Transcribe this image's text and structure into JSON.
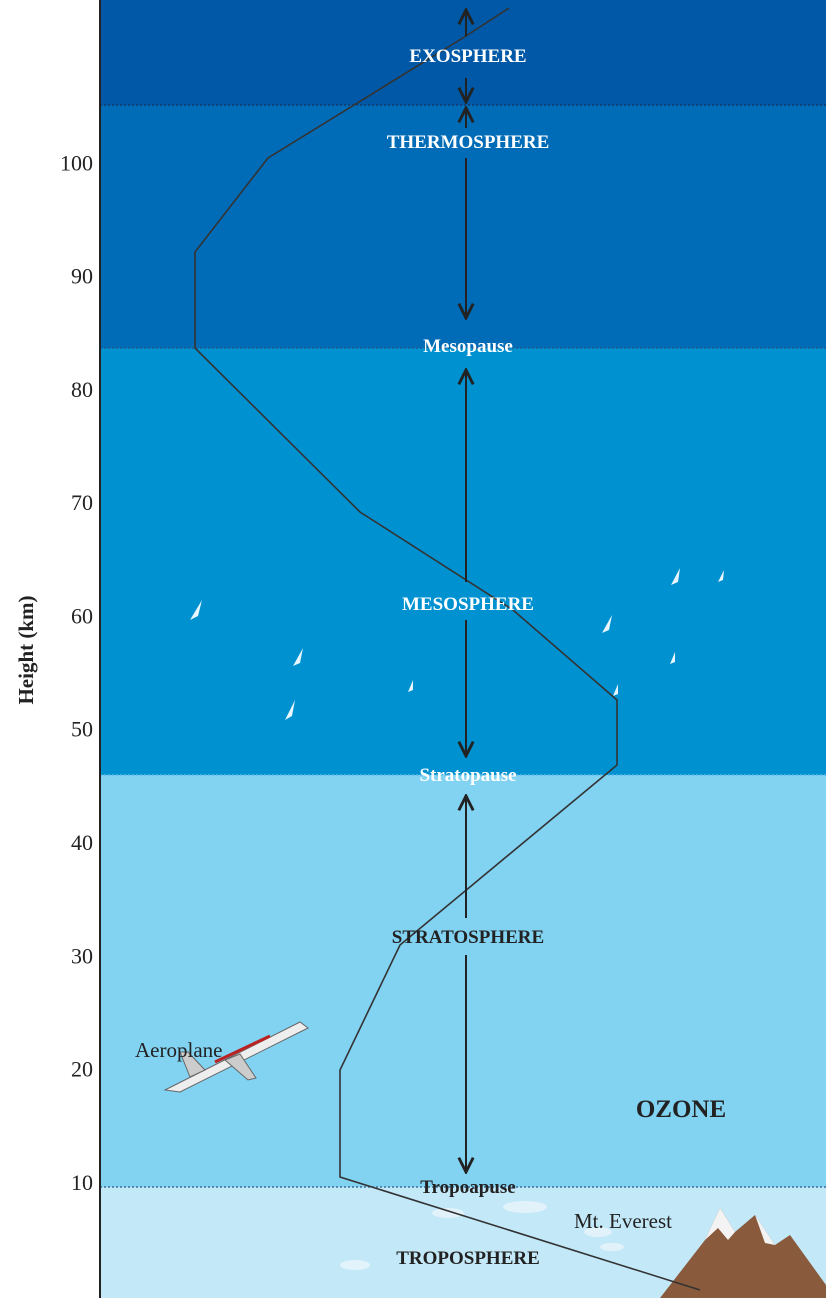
{
  "axis": {
    "label": "Height (km)",
    "ylim": [
      0,
      114.6
    ],
    "yticks": [
      10,
      20,
      30,
      40,
      50,
      60,
      70,
      80,
      90,
      100
    ]
  },
  "layers": {
    "exosphere": "EXOSPHERE",
    "thermosphere": "THERMOSPHERE",
    "mesosphere": "MESOSPHERE",
    "stratosphere": "STRATOSPHERE",
    "troposphere": "TROPOSPHERE"
  },
  "boundaries": {
    "mesopause": "Mesopause",
    "stratopause": "Stratopause",
    "tropopause": "Tropoapuse"
  },
  "labels": {
    "aeroplane": "Aeroplane",
    "everest": "Mt. Everest",
    "ozone": "OZONE"
  }
}
